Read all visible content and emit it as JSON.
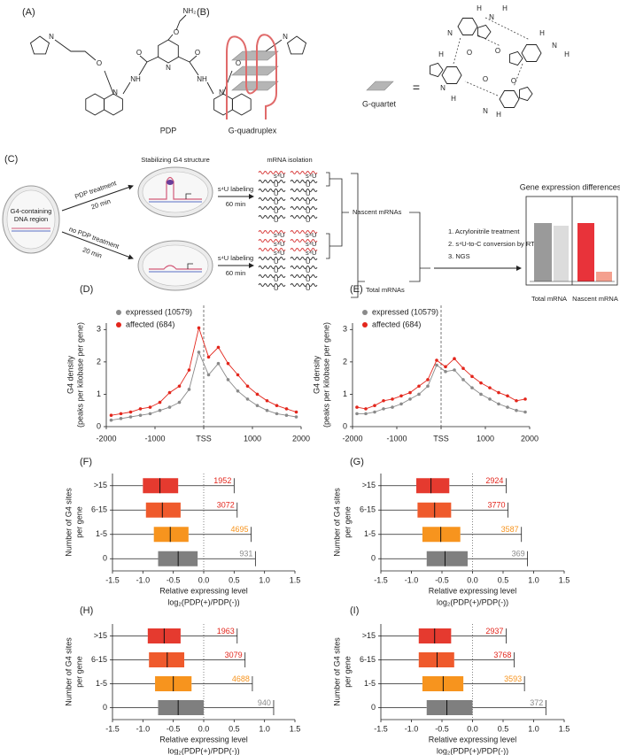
{
  "figure": {
    "panel_a": {
      "label": "(A)",
      "compound": "PDP",
      "atom_labels": [
        "NH₂",
        "O",
        "N",
        "O",
        "O",
        "NH",
        "NH",
        "O",
        "O",
        "N",
        "N",
        "N",
        "N"
      ]
    },
    "panel_b": {
      "label": "(B)",
      "structure": "G-quadruplex",
      "unit": "G-quartet",
      "equals": "=",
      "atom_labels": [
        "H",
        "N",
        "H",
        "N",
        "O",
        "H",
        "N",
        "H",
        "O",
        "H",
        "N",
        "H",
        "O",
        "N",
        "H",
        "O"
      ]
    },
    "panel_c": {
      "label": "(C)",
      "cell": [
        "G4-containing",
        "DNA region"
      ],
      "treatment": "PDP treatment",
      "no_treatment": "no PDP treatment",
      "time_treatment": "20 min",
      "stabilizing": "Stabilizing G4 structure",
      "labeling": "s⁴U labeling",
      "time_labeling": "60 min",
      "isolation": "mRNA isolation",
      "s4u": "s⁴U",
      "u": "U",
      "nascent": "Nascent mRNAs",
      "total": "Total mRNAs",
      "steps": [
        "1. Acrylonitrile treatment",
        "2. s⁴U-to-C conversion by RT",
        "3. NGS"
      ],
      "result_title": "Gene expression differences",
      "result_groups": [
        "Total mRNA",
        "Nascent mRNA"
      ]
    }
  },
  "chart_data": [
    {
      "type": "line",
      "panel": "(D)",
      "x": [
        -1900,
        -1700,
        -1500,
        -1300,
        -1100,
        -900,
        -700,
        -500,
        -300,
        -100,
        100,
        300,
        500,
        700,
        900,
        1100,
        1300,
        1500,
        1700,
        1900
      ],
      "series": [
        {
          "name": "expressed (10579)",
          "color": "#8a8a8a",
          "values": [
            0.2,
            0.25,
            0.3,
            0.35,
            0.4,
            0.5,
            0.6,
            0.75,
            1.15,
            2.3,
            1.6,
            1.95,
            1.45,
            1.1,
            0.85,
            0.65,
            0.5,
            0.4,
            0.35,
            0.3
          ]
        },
        {
          "name": "affected (684)",
          "color": "#e3261c",
          "values": [
            0.35,
            0.4,
            0.45,
            0.55,
            0.6,
            0.75,
            1.05,
            1.25,
            1.75,
            3.05,
            2.15,
            2.45,
            1.95,
            1.6,
            1.25,
            1.0,
            0.8,
            0.65,
            0.55,
            0.45
          ]
        }
      ],
      "xlim": [
        -2000,
        2000
      ],
      "xticks": [
        -2000,
        -1000,
        {
          "value": 0,
          "label": "TSS"
        },
        1000,
        2000
      ],
      "vline": 0,
      "ylim": [
        0,
        3.2
      ],
      "yticks": [
        0,
        1,
        2,
        3
      ],
      "ylabel": [
        "G4 density",
        "(peaks per kilobase per gene)"
      ]
    },
    {
      "type": "line",
      "panel": "(E)",
      "x": [
        -1900,
        -1700,
        -1500,
        -1300,
        -1100,
        -900,
        -700,
        -500,
        -300,
        -100,
        100,
        300,
        500,
        700,
        900,
        1100,
        1300,
        1500,
        1700,
        1900
      ],
      "series": [
        {
          "name": "expressed (10579)",
          "color": "#8a8a8a",
          "values": [
            0.4,
            0.4,
            0.45,
            0.55,
            0.6,
            0.7,
            0.85,
            1.0,
            1.25,
            1.9,
            1.7,
            1.75,
            1.45,
            1.2,
            1.0,
            0.85,
            0.7,
            0.6,
            0.5,
            0.45
          ]
        },
        {
          "name": "affected (684)",
          "color": "#e3261c",
          "values": [
            0.6,
            0.55,
            0.65,
            0.8,
            0.85,
            0.95,
            1.05,
            1.25,
            1.45,
            2.05,
            1.85,
            2.1,
            1.8,
            1.55,
            1.35,
            1.2,
            1.05,
            0.95,
            0.8,
            0.85
          ]
        }
      ],
      "xlim": [
        -2000,
        2000
      ],
      "xticks": [
        -2000,
        -1000,
        {
          "value": 0,
          "label": "TSS"
        },
        1000,
        2000
      ],
      "vline": 0,
      "ylim": [
        0,
        3.2
      ],
      "yticks": [
        0,
        1,
        2,
        3
      ],
      "ylabel": [
        "G4 density",
        "(peaks per kilobase per gene)"
      ]
    },
    {
      "type": "box",
      "panel": "(F)",
      "categories": [
        ">15",
        "6-15",
        "1-5",
        "0"
      ],
      "whislo": [
        -1.5,
        -1.5,
        -1.5,
        -1.5
      ],
      "q1": [
        -1.0,
        -0.95,
        -0.82,
        -0.75
      ],
      "median": [
        -0.72,
        -0.68,
        -0.55,
        -0.42
      ],
      "q3": [
        -0.42,
        -0.38,
        -0.25,
        -0.1
      ],
      "whishi": [
        0.5,
        0.55,
        0.78,
        0.85
      ],
      "colors": [
        "#e53a2f",
        "#ef5a2c",
        "#f7941e",
        "#7f7f7f"
      ],
      "counts": [
        1952,
        3072,
        4695,
        931
      ],
      "count_colors": [
        "#e3261c",
        "#e3261c",
        "#f7941e",
        "#8a8a8a"
      ],
      "xlim": [
        -1.5,
        1.5
      ],
      "xticks": [
        -1.5,
        {
          "value": -1,
          "label": "-1.0"
        },
        -0.5,
        {
          "value": 0,
          "label": "0.0"
        },
        0.5,
        {
          "value": 1,
          "label": "1.0"
        },
        1.5
      ],
      "vline": 0,
      "ylabel": [
        "Number of G4 sites",
        "per gene"
      ],
      "xlabel": [
        "Relative expressing level",
        "log₂(PDP(+)/PDP(-))"
      ]
    },
    {
      "type": "box",
      "panel": "(G)",
      "categories": [
        ">15",
        "6-15",
        "1-5",
        "0"
      ],
      "whislo": [
        -1.5,
        -1.5,
        -1.5,
        -1.5
      ],
      "q1": [
        -0.92,
        -0.9,
        -0.82,
        -0.75
      ],
      "median": [
        -0.68,
        -0.62,
        -0.52,
        -0.45
      ],
      "q3": [
        -0.38,
        -0.35,
        -0.2,
        -0.08
      ],
      "whishi": [
        0.55,
        0.58,
        0.8,
        0.9
      ],
      "colors": [
        "#e53a2f",
        "#ef5a2c",
        "#f7941e",
        "#7f7f7f"
      ],
      "counts": [
        2924,
        3770,
        3587,
        369
      ],
      "count_colors": [
        "#e3261c",
        "#e3261c",
        "#f7941e",
        "#8a8a8a"
      ],
      "xlim": [
        -1.5,
        1.5
      ],
      "xticks": [
        -1.5,
        {
          "value": -1,
          "label": "-1.0"
        },
        -0.5,
        {
          "value": 0,
          "label": "0.0"
        },
        0.5,
        {
          "value": 1,
          "label": "1.0"
        },
        1.5
      ],
      "vline": 0,
      "ylabel": [
        "Number of G4 sites",
        "per gene"
      ],
      "xlabel": [
        "Relative expressing level",
        "log₂(PDP(+)/PDP(-))"
      ]
    },
    {
      "type": "box",
      "panel": "(H)",
      "categories": [
        ">15",
        "6-15",
        "1-5",
        "0"
      ],
      "whislo": [
        -1.5,
        -1.5,
        -1.5,
        -1.5
      ],
      "q1": [
        -0.92,
        -0.9,
        -0.8,
        -0.75
      ],
      "median": [
        -0.65,
        -0.6,
        -0.5,
        -0.42
      ],
      "q3": [
        -0.38,
        -0.32,
        -0.2,
        0.0
      ],
      "whishi": [
        0.55,
        0.68,
        0.8,
        1.15
      ],
      "colors": [
        "#e53a2f",
        "#ef5a2c",
        "#f7941e",
        "#7f7f7f"
      ],
      "counts": [
        1963,
        3079,
        4688,
        940
      ],
      "count_colors": [
        "#e3261c",
        "#e3261c",
        "#f7941e",
        "#8a8a8a"
      ],
      "xlim": [
        -1.5,
        1.5
      ],
      "xticks": [
        -1.5,
        {
          "value": -1,
          "label": "-1.0"
        },
        -0.5,
        {
          "value": 0,
          "label": "0.0"
        },
        0.5,
        {
          "value": 1,
          "label": "1.0"
        },
        1.5
      ],
      "vline": 0,
      "ylabel": [
        "Number of G4 sites",
        "per gene"
      ],
      "xlabel": [
        "Relative expressing level",
        "log₂(PDP(+)/PDP(-))"
      ]
    },
    {
      "type": "box",
      "panel": "(I)",
      "categories": [
        ">15",
        "6-15",
        "1-5",
        "0"
      ],
      "whislo": [
        -1.5,
        -1.5,
        -1.5,
        -1.5
      ],
      "q1": [
        -0.88,
        -0.88,
        -0.82,
        -0.75
      ],
      "median": [
        -0.62,
        -0.58,
        -0.48,
        -0.42
      ],
      "q3": [
        -0.35,
        -0.3,
        -0.15,
        0.0
      ],
      "whishi": [
        0.55,
        0.68,
        0.85,
        1.2
      ],
      "colors": [
        "#e53a2f",
        "#ef5a2c",
        "#f7941e",
        "#7f7f7f"
      ],
      "counts": [
        2937,
        3768,
        3593,
        372
      ],
      "count_colors": [
        "#e3261c",
        "#e3261c",
        "#f7941e",
        "#8a8a8a"
      ],
      "xlim": [
        -1.5,
        1.5
      ],
      "xticks": [
        -1.5,
        {
          "value": -1,
          "label": "-1.0"
        },
        -0.5,
        {
          "value": 0,
          "label": "0.0"
        },
        0.5,
        {
          "value": 1,
          "label": "1.0"
        },
        1.5
      ],
      "vline": 0,
      "ylabel": [
        "Number of G4 sites",
        "per gene"
      ],
      "xlabel": [
        "Relative expressing level",
        "log₂(PDP(+)/PDP(-))"
      ]
    }
  ]
}
